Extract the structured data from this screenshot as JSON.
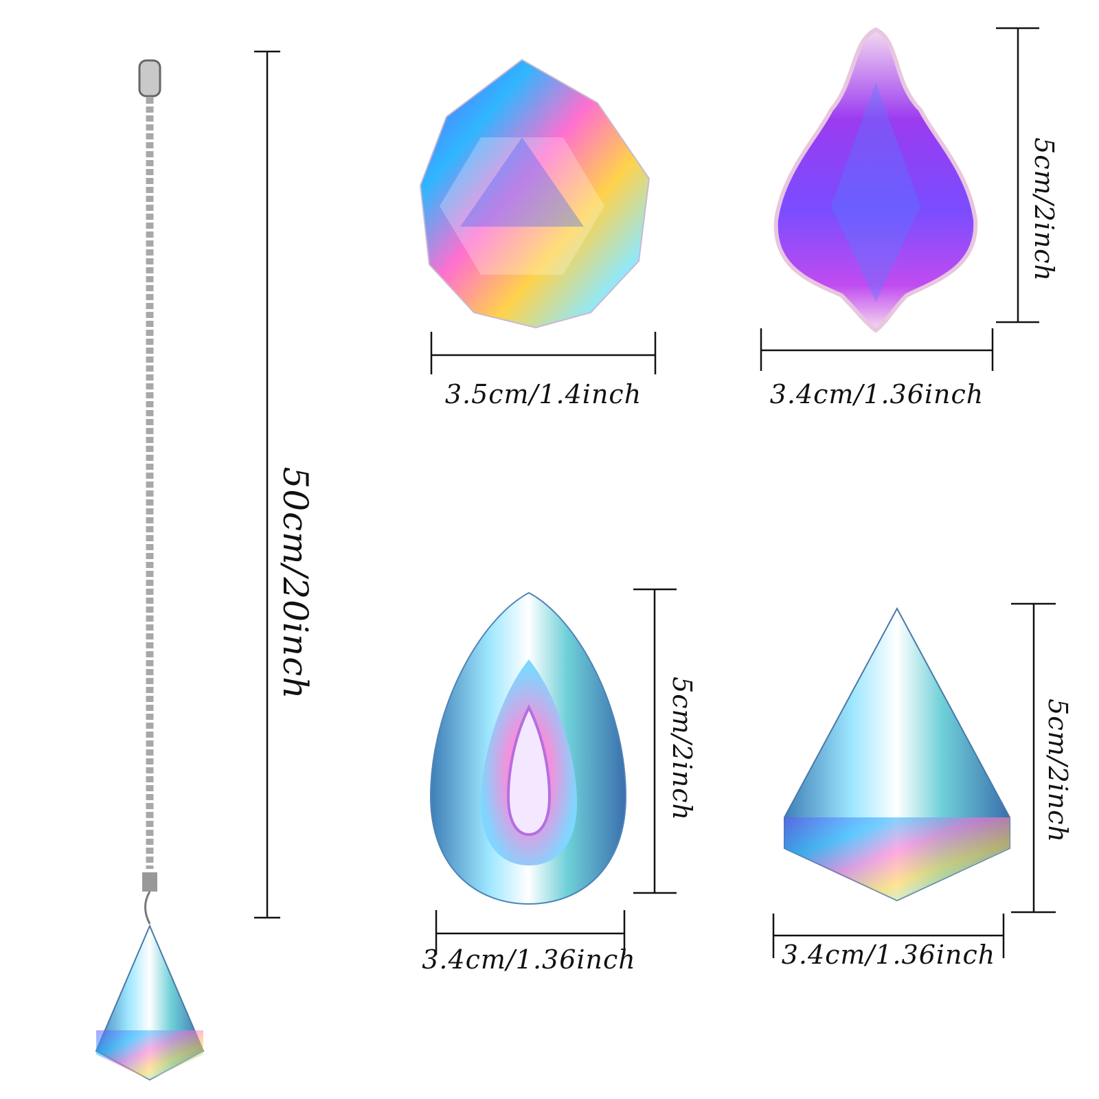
{
  "chain_length": "50cm/20inch",
  "crystals": [
    {
      "name": "ball",
      "width": "3.5cm/1.4inch"
    },
    {
      "name": "maple-leaf",
      "width": "3.4cm/1.36inch",
      "height": "5cm/2inch"
    },
    {
      "name": "teardrop",
      "width": "3.4cm/1.36inch",
      "height": "5cm/2inch"
    },
    {
      "name": "cone",
      "width": "3.4cm/1.36inch",
      "height": "5cm/2inch"
    }
  ]
}
